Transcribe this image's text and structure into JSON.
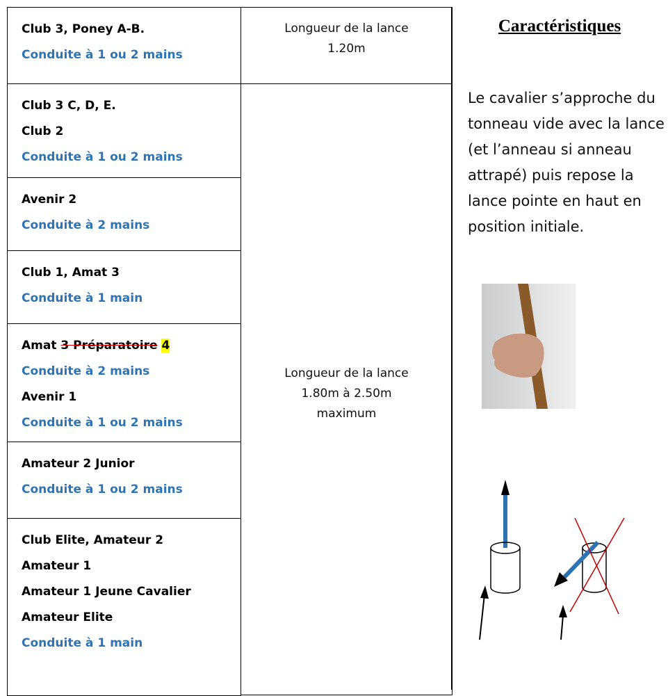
{
  "table": {
    "rows": [
      {
        "groups": [
          {
            "levels": [
              "Club 3, Poney A-B."
            ],
            "conduite": "Conduite à 1 ou 2 mains"
          }
        ]
      },
      {
        "groups": [
          {
            "levels": [
              "Club 3 C, D, E.",
              "Club 2"
            ],
            "conduite": "Conduite à 1 ou 2 mains"
          }
        ]
      },
      {
        "groups": [
          {
            "levels": [
              "Avenir 2"
            ],
            "conduite": "Conduite à 2 mains"
          }
        ]
      },
      {
        "groups": [
          {
            "levels": [
              "Club 1, Amat 3"
            ],
            "conduite": "Conduite à 1 main"
          }
        ]
      },
      {
        "groups": [
          {
            "level": "Amat",
            "struck": "3 Préparatoire",
            "inserted": "4",
            "conduite": "Conduite à 2 mains"
          },
          {
            "levels": [
              "Avenir 1"
            ],
            "conduite": "Conduite à 1 ou 2 mains"
          }
        ]
      },
      {
        "groups": [
          {
            "levels": [
              "Amateur 2 Junior"
            ],
            "conduite": "Conduite à 1 ou 2 mains"
          }
        ]
      },
      {
        "groups": [
          {
            "levels": [
              "Club Elite, Amateur 2",
              "Amateur 1",
              "Amateur 1 Jeune Cavalier",
              "Amateur Elite"
            ],
            "conduite": "Conduite à 1 main"
          }
        ]
      }
    ],
    "lance_short": [
      "Longueur de la lance",
      "1.20m"
    ],
    "lance_long": [
      "Longueur de la lance",
      "1.80m à 2.50m",
      "maximum"
    ]
  },
  "characteristics": {
    "title": "Caractéristiques",
    "text": "Le cavalier s’approche du tonneau vide avec la lance (et l’anneau  si anneau attrapé) puis repose la lance pointe en haut en position initiale."
  }
}
